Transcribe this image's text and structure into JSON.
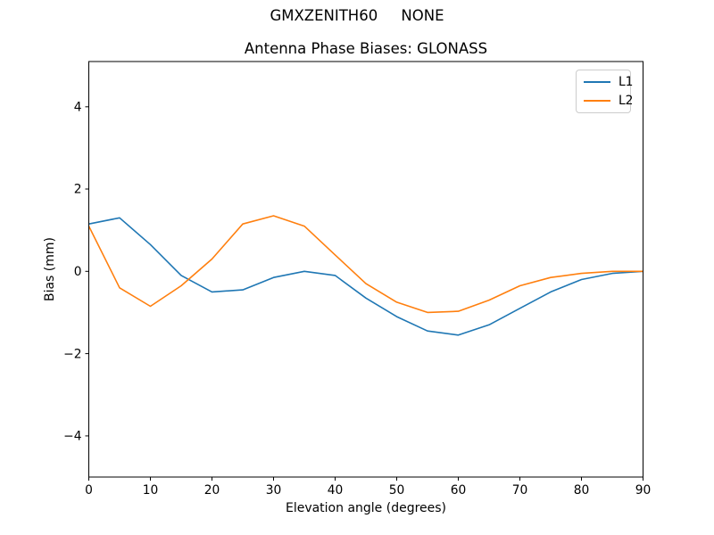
{
  "figure": {
    "suptitle": "GMXZENITH60     NONE",
    "title": "Antenna Phase Biases: GLONASS",
    "xlabel": "Elevation angle (degrees)",
    "ylabel": "Bias (mm)"
  },
  "legend": {
    "position": "upper right",
    "items": [
      {
        "label": "L1",
        "color": "#1f77b4"
      },
      {
        "label": "L2",
        "color": "#ff7f0e"
      }
    ]
  },
  "chart_data": {
    "type": "line",
    "title": "Antenna Phase Biases: GLONASS",
    "suptitle": "GMXZENITH60     NONE",
    "xlabel": "Elevation angle (degrees)",
    "ylabel": "Bias (mm)",
    "x": [
      0,
      5,
      10,
      15,
      20,
      25,
      30,
      35,
      40,
      45,
      50,
      55,
      60,
      65,
      70,
      75,
      80,
      85,
      90
    ],
    "series": [
      {
        "name": "L1",
        "color": "#1f77b4",
        "values": [
          1.15,
          1.3,
          0.65,
          -0.1,
          -0.5,
          -0.45,
          -0.15,
          0.0,
          -0.1,
          -0.65,
          -1.1,
          -1.45,
          -1.55,
          -1.3,
          -0.9,
          -0.5,
          -0.2,
          -0.05,
          0.0
        ]
      },
      {
        "name": "L2",
        "color": "#ff7f0e",
        "values": [
          1.1,
          -0.4,
          -0.85,
          -0.35,
          0.3,
          1.15,
          1.35,
          1.1,
          0.4,
          -0.3,
          -0.75,
          -1.0,
          -0.97,
          -0.7,
          -0.35,
          -0.15,
          -0.05,
          0.0,
          0.0
        ]
      }
    ],
    "xlim": [
      0,
      90
    ],
    "ylim": [
      -5.0,
      5.1
    ],
    "x_ticks": [
      0,
      10,
      20,
      30,
      40,
      50,
      60,
      70,
      80,
      90
    ],
    "y_ticks": [
      -4,
      -2,
      0,
      2,
      4
    ],
    "grid": false,
    "markers": false,
    "legend_position": "upper right"
  }
}
